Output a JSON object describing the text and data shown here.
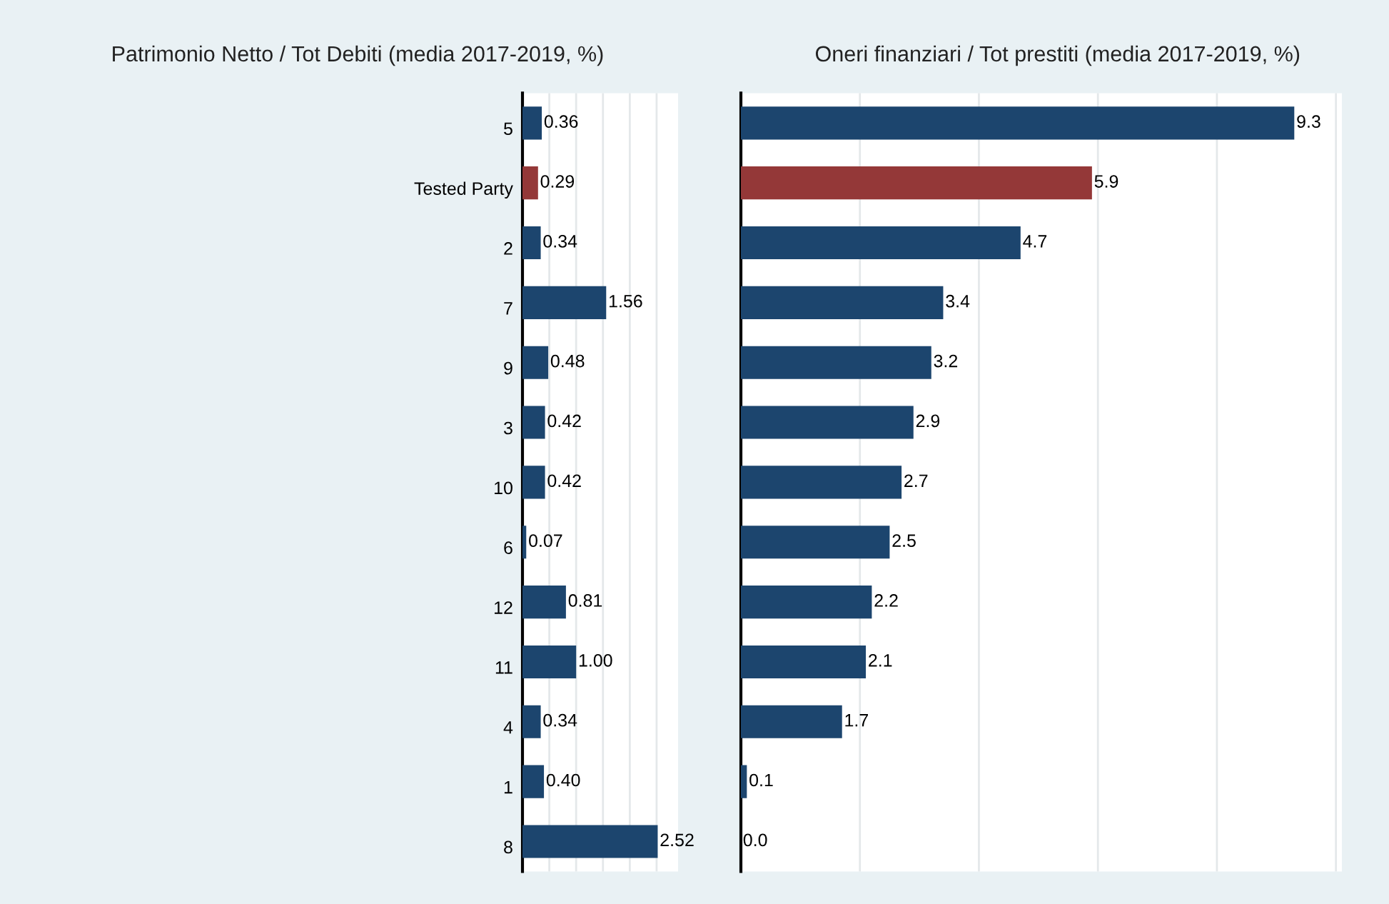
{
  "chart_data": [
    {
      "type": "bar",
      "orientation": "horizontal",
      "title": "Patrimonio Netto / Tot Debiti (media 2017-2019, %)",
      "categories": [
        "5",
        "Tested Party",
        "2",
        "7",
        "9",
        "3",
        "10",
        "6",
        "12",
        "11",
        "4",
        "1",
        "8"
      ],
      "values": [
        0.36,
        0.29,
        0.34,
        1.56,
        0.48,
        0.42,
        0.42,
        0.07,
        0.81,
        1.0,
        0.34,
        0.4,
        2.52
      ],
      "colors": [
        "#1c456e",
        "#943838",
        "#1c456e",
        "#1c456e",
        "#1c456e",
        "#1c456e",
        "#1c456e",
        "#1c456e",
        "#1c456e",
        "#1c456e",
        "#1c456e",
        "#1c456e",
        "#1c456e"
      ],
      "value_labels": [
        "0.36",
        "0.29",
        "0.34",
        "1.56",
        "0.48",
        "0.42",
        "0.42",
        "0.07",
        "0.81",
        "1.00",
        "0.34",
        "0.40",
        "2.52"
      ],
      "xlim": [
        0,
        2.9
      ],
      "xticks": [
        {
          "value": 0.5,
          "label": null
        },
        {
          "value": 1,
          "label": null
        },
        {
          "value": 1.5,
          "label": null
        },
        {
          "value": 2,
          "label": null
        },
        {
          "value": 2.5,
          "label": null
        }
      ],
      "grid": "x",
      "tick_labels": "y",
      "legend": false
    },
    {
      "type": "bar",
      "orientation": "horizontal",
      "title": "Oneri finanziari / Tot prestiti (media 2017-2019, %)",
      "values": [
        9.3,
        5.9,
        4.7,
        3.4,
        3.2,
        2.9,
        2.7,
        2.5,
        2.2,
        2.1,
        1.7,
        0.1,
        0.0
      ],
      "colors": [
        "#1c456e",
        "#943838",
        "#1c456e",
        "#1c456e",
        "#1c456e",
        "#1c456e",
        "#1c456e",
        "#1c456e",
        "#1c456e",
        "#1c456e",
        "#1c456e",
        "#1c456e",
        "#1c456e"
      ],
      "value_labels": [
        "9.3",
        "5.9",
        "4.7",
        "3.4",
        "3.2",
        "2.9",
        "2.7",
        "2.5",
        "2.2",
        "2.1",
        "1.7",
        "0.1",
        "0.0"
      ],
      "xlim": [
        0,
        10.1
      ],
      "xticks": [
        {
          "value": 2,
          "label": null
        },
        {
          "value": 4,
          "label": null
        },
        {
          "value": 6,
          "label": null
        },
        {
          "value": 8,
          "label": null
        },
        {
          "value": 10,
          "label": null
        }
      ],
      "grid": "x",
      "tick_labels": false,
      "legend": false
    }
  ]
}
